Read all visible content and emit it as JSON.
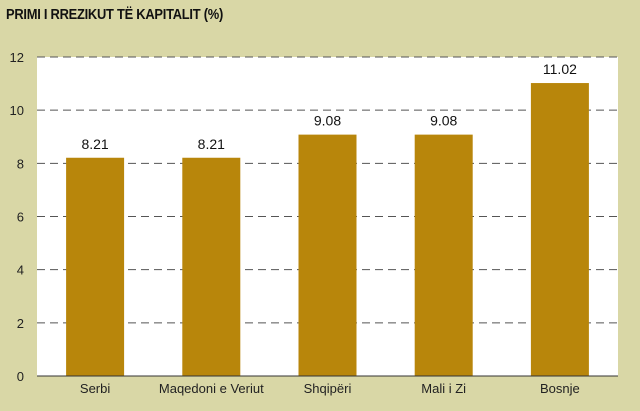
{
  "chart_data": {
    "type": "bar",
    "title": "PRIMI I RREZIKUT TË KAPITALIT (%)",
    "categories": [
      "Serbi",
      "Maqedoni e Veriut",
      "Shqipëri",
      "Mali i Zi",
      "Bosnje"
    ],
    "values": [
      8.21,
      8.21,
      9.08,
      9.08,
      11.02
    ],
    "value_labels": [
      "8.21",
      "8.21",
      "9.08",
      "9.08",
      "11.02"
    ],
    "ylim": [
      0,
      12
    ],
    "yticks": [
      0,
      2,
      4,
      6,
      8,
      10,
      12
    ],
    "ytick_labels": [
      "0",
      "2",
      "4",
      "6",
      "8",
      "10",
      "12"
    ],
    "grid": true,
    "xlabel": "",
    "ylabel": ""
  },
  "colors": {
    "background": "#d9d7a6",
    "plot_background": "#ffffff",
    "bar": "#b8860b",
    "grid": "#555555"
  }
}
